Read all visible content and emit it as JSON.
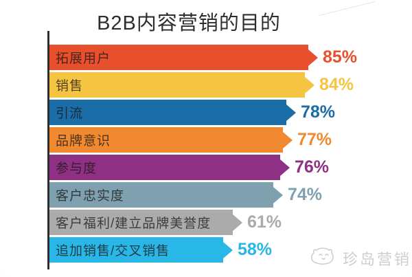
{
  "title": "B2B内容营销的目的",
  "chart_data": {
    "type": "bar",
    "orientation": "horizontal",
    "title": "B2B内容营销的目的",
    "xlabel": "",
    "ylabel": "",
    "unit": "%",
    "xlim": [
      0,
      100
    ],
    "grid": false,
    "legend": false,
    "bar_style": "arrow-tip",
    "categories": [
      "拓展用户",
      "销售",
      "引流",
      "品牌意识",
      "参与度",
      "客户忠实度",
      "客户福利/建立品牌美誉度",
      "追加销售/交叉销售"
    ],
    "values": [
      85,
      84,
      78,
      77,
      76,
      74,
      61,
      58
    ],
    "labels": [
      "85%",
      "84%",
      "78%",
      "77%",
      "76%",
      "74%",
      "61%",
      "58%"
    ],
    "colors": [
      "#E84F2D",
      "#F6C443",
      "#1B6DA8",
      "#F0892F",
      "#8E3083",
      "#7FA0AF",
      "#ABABAB",
      "#29B7E8"
    ]
  },
  "axis": {
    "color": "#2e2e2e"
  },
  "watermark": {
    "text": "珍岛营销",
    "logo": "doodle-face-icon",
    "color": "#cecece"
  }
}
